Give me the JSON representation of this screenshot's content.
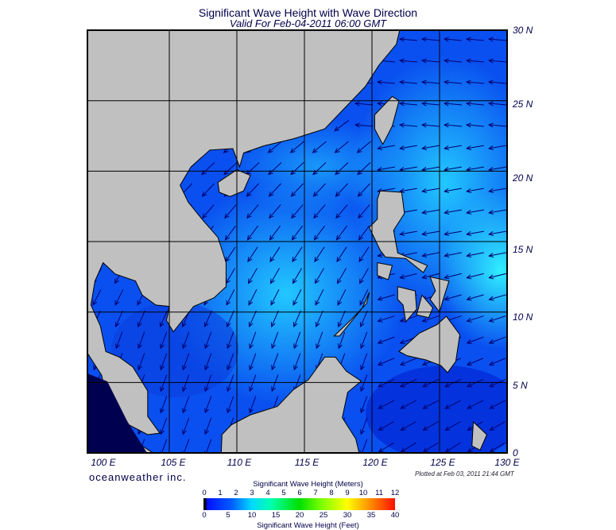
{
  "title": "Significant Wave Height with Wave Direction",
  "subtitle": "Valid For Feb-04-2011 06:00 GMT",
  "lon_labels": [
    "100 E",
    "105 E",
    "110 E",
    "115 E",
    "120 E",
    "125 E",
    "130 E"
  ],
  "lat_labels": [
    "30 N",
    "25 N",
    "20 N",
    "15 N",
    "10 N",
    "5 N",
    "0"
  ],
  "brand": "oceanweather inc.",
  "plotted": "Plotted at Feb 03, 2011 21:44 GMT",
  "legend": {
    "meters_title": "Significant Wave Height (Meters)",
    "meters_ticks": [
      "0",
      "1",
      "2",
      "3",
      "4",
      "5",
      "6",
      "7",
      "8",
      "9",
      "10",
      "11",
      "12"
    ],
    "feet_ticks": [
      "0",
      "5",
      "10",
      "15",
      "20",
      "25",
      "30",
      "35",
      "40"
    ],
    "feet_title": "Significant Wave Height (Feet)"
  },
  "colors": {
    "land": "#c0c0c0",
    "arrow": "#00006e",
    "ocean_low": "#0a3cf0",
    "ocean_high": "#20d0ff"
  }
}
